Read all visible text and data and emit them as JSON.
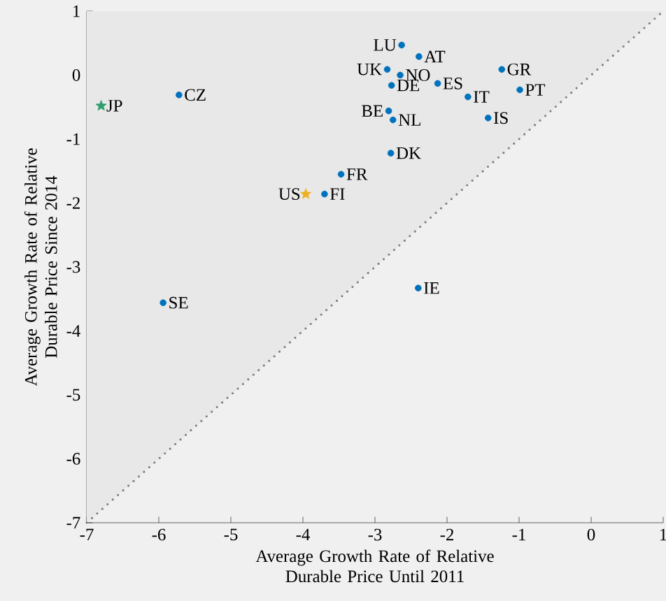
{
  "chart_data": {
    "type": "scatter",
    "xlabel": "Average Growth Rate of Relative Durable Price Until 2011",
    "ylabel": "Average Growth Rate of Relative Durable Price Since 2014",
    "xlim": [
      -7,
      1
    ],
    "ylim": [
      -7,
      1
    ],
    "xticks": [
      -7,
      -6,
      -5,
      -4,
      -3,
      -2,
      -1,
      0,
      1
    ],
    "yticks": [
      -7,
      -6,
      -5,
      -4,
      -3,
      -2,
      -1,
      0,
      1
    ],
    "grid": false,
    "series": [
      {
        "type": "line",
        "color": "#7f7f7f",
        "line_style": "dotted",
        "marker": "none",
        "x": [
          -7,
          1
        ],
        "values": [
          -7,
          1
        ],
        "lower": [
          -7,
          1
        ],
        "upper": [
          1,
          1
        ]
      },
      {
        "color": "#0072bd",
        "marker": "circle",
        "x": [
          -2.63,
          -2.39,
          -2.83,
          -2.65,
          -2.77,
          -2.13,
          -1.24,
          -1.71,
          -0.99,
          -1.43,
          -2.81,
          -2.75,
          -2.78,
          -3.47,
          -3.7,
          -5.72,
          -5.94,
          -2.4
        ],
        "values": [
          0.47,
          0.29,
          0.09,
          0.0,
          -0.16,
          -0.13,
          0.09,
          -0.34,
          -0.23,
          -0.67,
          -0.56,
          -0.7,
          -1.22,
          -1.55,
          -1.86,
          -0.31,
          -3.56,
          -3.33
        ]
      },
      {
        "color": "#edb120",
        "marker": "star",
        "x": [
          -3.96
        ],
        "values": [
          -1.86
        ]
      },
      {
        "color": "#2e9e6e",
        "marker": "star",
        "x": [
          -6.8
        ],
        "values": [
          -0.48
        ]
      }
    ],
    "annotations": [
      {
        "text": "LU",
        "x": -2.63,
        "y": 0.47
      },
      {
        "text": "AT",
        "x": -2.39,
        "y": 0.29
      },
      {
        "text": "UK",
        "x": -2.83,
        "y": 0.09
      },
      {
        "text": "NO",
        "x": -2.65,
        "y": 0.0
      },
      {
        "text": "DE",
        "x": -2.77,
        "y": -0.16
      },
      {
        "text": "ES",
        "x": -2.13,
        "y": -0.13
      },
      {
        "text": "GR",
        "x": -1.24,
        "y": 0.09
      },
      {
        "text": "IT",
        "x": -1.71,
        "y": -0.34
      },
      {
        "text": "PT",
        "x": -0.99,
        "y": -0.23
      },
      {
        "text": "IS",
        "x": -1.43,
        "y": -0.67
      },
      {
        "text": "BE",
        "x": -2.81,
        "y": -0.56
      },
      {
        "text": "NL",
        "x": -2.75,
        "y": -0.7
      },
      {
        "text": "DK",
        "x": -2.78,
        "y": -1.22
      },
      {
        "text": "FR",
        "x": -3.47,
        "y": -1.55
      },
      {
        "text": "FI",
        "x": -3.7,
        "y": -1.86
      },
      {
        "text": "US",
        "x": -3.96,
        "y": -1.86
      },
      {
        "text": "JP",
        "x": -6.8,
        "y": -0.48
      },
      {
        "text": "CZ",
        "x": -5.72,
        "y": -0.31
      },
      {
        "text": "SE",
        "x": -5.94,
        "y": -3.56
      },
      {
        "text": "IE",
        "x": -2.4,
        "y": -3.33
      }
    ]
  }
}
